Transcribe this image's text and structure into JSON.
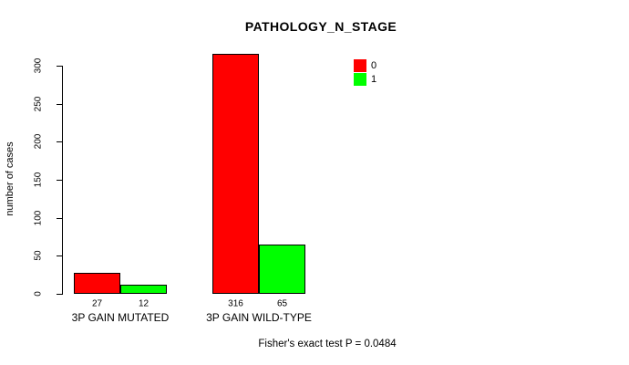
{
  "chart_data": {
    "type": "bar",
    "title": "PATHOLOGY_N_STAGE",
    "xlabel": "",
    "ylabel": "number of cases",
    "categories": [
      "3P GAIN MUTATED",
      "3P GAIN WILD-TYPE"
    ],
    "series": [
      {
        "name": "0",
        "color": "#FF0000",
        "values": [
          27,
          316
        ]
      },
      {
        "name": "1",
        "color": "#00FF00",
        "values": [
          12,
          65
        ]
      }
    ],
    "bar_value_labels": [
      [
        "27",
        "12"
      ],
      [
        "316",
        "65"
      ]
    ],
    "ylim": [
      0,
      300
    ],
    "yticks": [
      0,
      50,
      100,
      150,
      200,
      250,
      300
    ],
    "grid": false,
    "legend_position": "top-right",
    "bar_border_color": "#000000",
    "axis_color": "#000000",
    "background_color": "#FFFFFF",
    "annotation": "Fisher's exact test P = 0.0484"
  }
}
